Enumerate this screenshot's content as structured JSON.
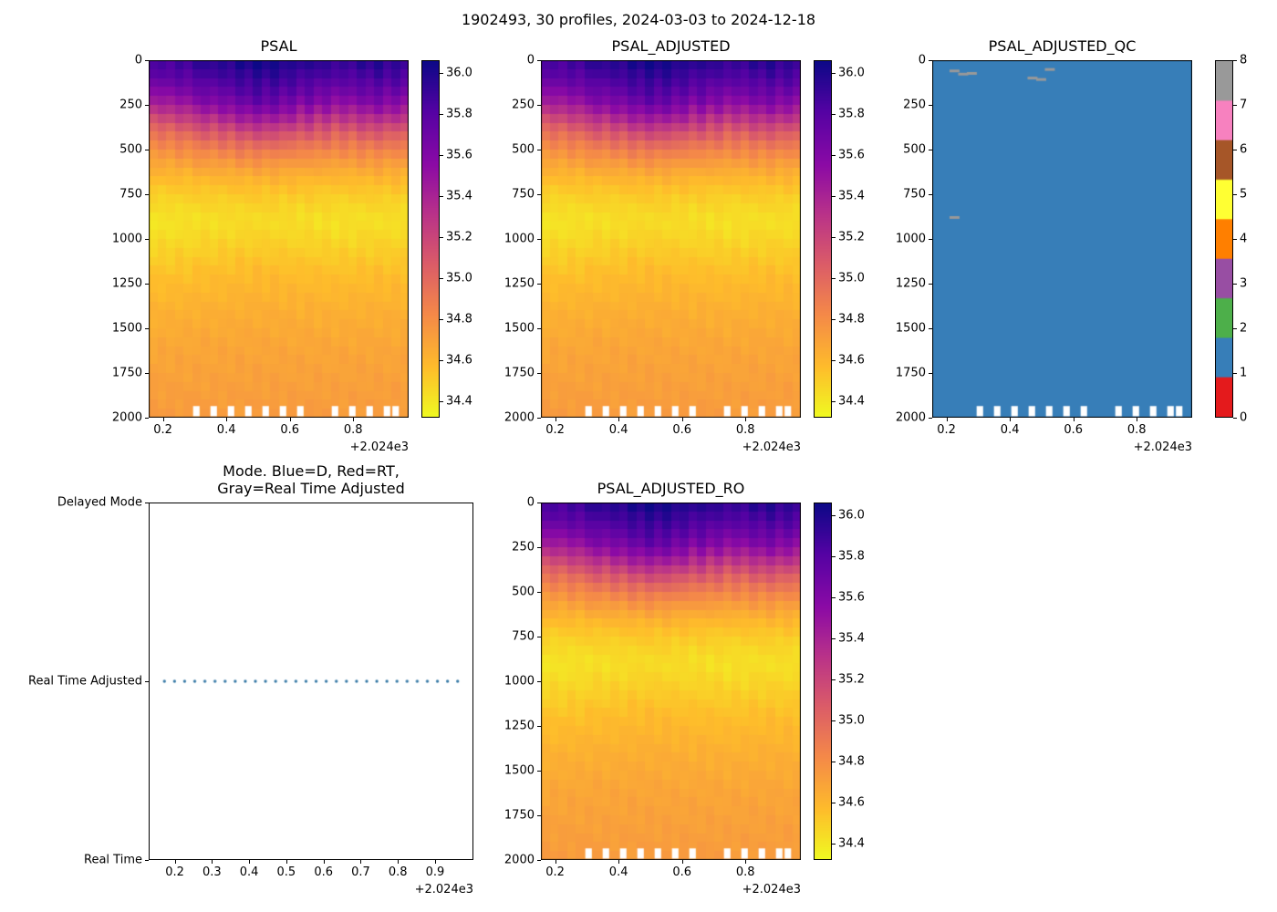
{
  "figure": {
    "title": "1902493, 30 profiles, 2024-03-03 to 2024-12-18"
  },
  "axes_text": {
    "x_offset_label": "+2.024e3",
    "heatmap_x_tick_labels": [
      "0.2",
      "0.4",
      "0.6",
      "0.8"
    ],
    "mode_x_tick_labels": [
      "0.2",
      "0.3",
      "0.4",
      "0.5",
      "0.6",
      "0.7",
      "0.8",
      "0.9"
    ],
    "depth_tick_labels": [
      "0",
      "250",
      "500",
      "750",
      "1000",
      "1250",
      "1500",
      "1750",
      "2000"
    ],
    "salinity_cbar_tick_labels": [
      "34.4",
      "34.6",
      "34.8",
      "35.0",
      "35.2",
      "35.4",
      "35.6",
      "35.8",
      "36.0"
    ],
    "qc_cbar_tick_labels": [
      "0",
      "1",
      "2",
      "3",
      "4",
      "5",
      "6",
      "7",
      "8"
    ]
  },
  "chart_data": {
    "type": "heatmap",
    "figure_title": "1902493, 30 profiles, 2024-03-03 to 2024-12-18",
    "platform": "1902493",
    "n_profiles": 30,
    "date_range": [
      "2024-03-03",
      "2024-12-18"
    ],
    "time_axis": {
      "xlim": [
        2024.155,
        2024.975
      ],
      "ticks": [
        2024.2,
        2024.4,
        2024.6,
        2024.8
      ],
      "offset_label": "+2.024e3",
      "profile_times_start": 2024.17,
      "profile_times_step": 0.02734
    },
    "depth_axis": {
      "ylim": [
        0,
        2000
      ],
      "ticks": [
        0,
        250,
        500,
        750,
        1000,
        1250,
        1500,
        1750,
        2000
      ]
    },
    "salinity": {
      "colormap": "plasma_r",
      "vmin": 34.32,
      "vmax": 36.06,
      "colorbar_ticks": [
        34.4,
        34.6,
        34.8,
        35.0,
        35.2,
        35.4,
        35.6,
        35.8,
        36.0
      ],
      "depths": [
        0,
        50,
        100,
        150,
        200,
        250,
        300,
        400,
        500,
        600,
        700,
        800,
        900,
        1000,
        1200,
        1400,
        1600,
        1800,
        2000
      ],
      "mean_profile": [
        35.92,
        35.86,
        35.79,
        35.7,
        35.6,
        35.48,
        35.32,
        35.04,
        34.82,
        34.66,
        34.54,
        34.46,
        34.41,
        34.45,
        34.55,
        34.62,
        34.67,
        34.7,
        34.73
      ],
      "profile_anomaly": [
        -0.35,
        -0.15,
        -0.3,
        0.05,
        -0.15,
        0.2,
        0.35,
        0.15,
        0.5,
        0.3,
        0.75,
        0.5,
        0.9,
        0.55,
        0.8,
        0.45,
        0.6,
        0.2,
        0.5,
        0.1,
        0.35,
        -0.05,
        0.25,
        0.0,
        0.4,
        0.15,
        0.5,
        0.1,
        0.35,
        0.05
      ],
      "missing_bottom_profiles": [
        5,
        7,
        9,
        11,
        13,
        15,
        17,
        21,
        23,
        25,
        27,
        28
      ],
      "missing_bottom_depth_range": [
        1935,
        1992
      ]
    },
    "panels": [
      {
        "id": "psal",
        "kind": "heatmap",
        "title": "PSAL"
      },
      {
        "id": "psal_adjusted",
        "kind": "heatmap",
        "title": "PSAL_ADJUSTED"
      },
      {
        "id": "psal_adjusted_qc",
        "kind": "qc-heatmap",
        "title": "PSAL_ADJUSTED_QC",
        "dominant_flag": 1,
        "flag_marks": [
          {
            "profile": 2,
            "depth": 60,
            "flag": 8
          },
          {
            "profile": 3,
            "depth": 78,
            "flag": 8
          },
          {
            "profile": 4,
            "depth": 74,
            "flag": 8
          },
          {
            "profile": 11,
            "depth": 100,
            "flag": 8
          },
          {
            "profile": 12,
            "depth": 108,
            "flag": 8
          },
          {
            "profile": 13,
            "depth": 52,
            "flag": 8
          },
          {
            "profile": 2,
            "depth": 880,
            "flag": 8
          }
        ],
        "colorbar": {
          "ticks": [
            0,
            1,
            2,
            3,
            4,
            5,
            6,
            7,
            8
          ],
          "colors": [
            "#e41a1c",
            "#377eb8",
            "#4daf4a",
            "#984ea3",
            "#ff7f00",
            "#ffff33",
            "#a65628",
            "#f781bf",
            "#999999"
          ]
        }
      },
      {
        "id": "mode",
        "kind": "scatter",
        "title_line1": "Mode. Blue=D, Red=RT,",
        "title_line2": "Gray=Real Time Adjusted",
        "y_categories": [
          "Real Time",
          "Real Time Adjusted",
          "Delayed Mode"
        ],
        "xlim": [
          2024.13,
          2025.003
        ],
        "xticks": [
          2024.2,
          2024.3,
          2024.4,
          2024.5,
          2024.6,
          2024.7,
          2024.8,
          2024.9
        ],
        "points_y_category": "Real Time Adjusted",
        "n_points": 30,
        "dot_color": "#3a7ca8",
        "marker_style": "dotted"
      },
      {
        "id": "psal_adjusted_ro",
        "kind": "heatmap",
        "title": "PSAL_ADJUSTED_RO"
      }
    ]
  }
}
